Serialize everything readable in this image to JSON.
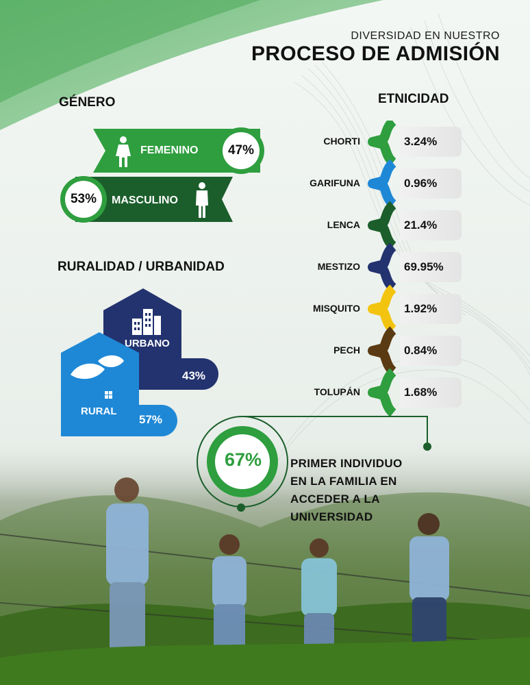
{
  "header": {
    "subtitle": "DIVERSIDAD EN NUESTRO",
    "title": "PROCESO DE ADMISIÓN"
  },
  "genero": {
    "heading": "GÉNERO",
    "femenino": {
      "label": "FEMENINO",
      "pct": "47%",
      "color": "#2e9e3e"
    },
    "masculino": {
      "label": "MASCULINO",
      "pct": "53%",
      "color": "#1b5e2b"
    }
  },
  "ruralidad": {
    "heading": "RURALIDAD / URBANIDAD",
    "urbano": {
      "label": "URBANO",
      "pct": "43%",
      "color": "#23336f"
    },
    "rural": {
      "label": "RURAL",
      "pct": "57%",
      "color": "#1e88d6"
    }
  },
  "etnicidad": {
    "heading": "ETNICIDAD",
    "items": [
      {
        "name": "CHORTI",
        "pct": "3.24%",
        "color": "#2e9e3e"
      },
      {
        "name": "GARIFUNA",
        "pct": "0.96%",
        "color": "#1e88d6"
      },
      {
        "name": "LENCA",
        "pct": "21.4%",
        "color": "#1b5e2b"
      },
      {
        "name": "MESTIZO",
        "pct": "69.95%",
        "color": "#23336f"
      },
      {
        "name": "MISQUITO",
        "pct": "1.92%",
        "color": "#f2c40f"
      },
      {
        "name": "PECH",
        "pct": "0.84%",
        "color": "#5a3a12"
      },
      {
        "name": "TOLUPÁN",
        "pct": "1.68%",
        "color": "#2e9e3e"
      }
    ]
  },
  "primer_individuo": {
    "pct": "67%",
    "text_lines": [
      "PRIMER INDIVIDUO",
      "EN LA FAMILIA EN",
      "ACCEDER A LA",
      "UNIVERSIDAD"
    ],
    "color": "#2e9e3e"
  }
}
